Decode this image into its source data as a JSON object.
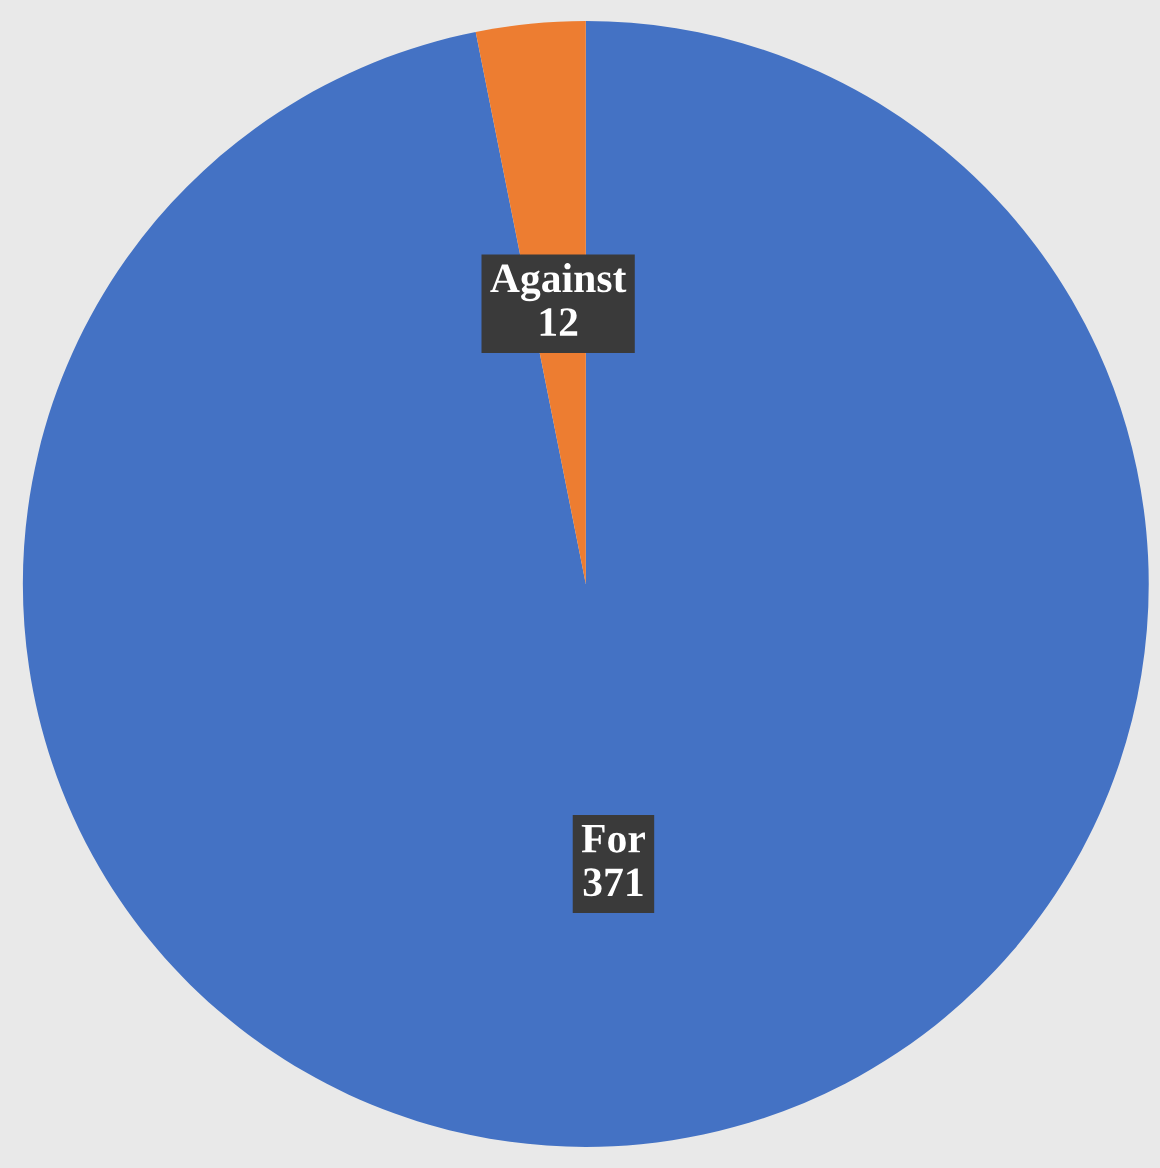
{
  "chart_data": {
    "type": "pie",
    "categories": [
      "For",
      "Against"
    ],
    "values": [
      371,
      12
    ],
    "colors": [
      "#4472c4",
      "#ed7d31"
    ],
    "data_labels": true
  }
}
